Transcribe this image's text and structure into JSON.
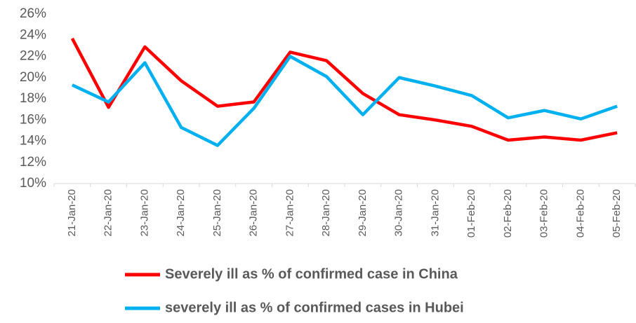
{
  "chart_data": {
    "type": "line",
    "categories": [
      "21-Jan-20",
      "22-Jan-20",
      "23-Jan-20",
      "24-Jan-20",
      "25-Jan-20",
      "26-Jan-20",
      "27-Jan-20",
      "28-Jan-20",
      "29-Jan-20",
      "30-Jan-20",
      "31-Jan-20",
      "01-Feb-20",
      "02-Feb-20",
      "03-Feb-20",
      "04-Feb-20",
      "05-Feb-20"
    ],
    "series": [
      {
        "name": "Severely ill as % of confirmed case in China",
        "color": "#ff0000",
        "values": [
          23.7,
          17.2,
          22.9,
          19.7,
          17.3,
          17.7,
          22.4,
          21.6,
          18.5,
          16.5,
          16.0,
          15.4,
          14.1,
          14.4,
          14.1,
          14.8
        ]
      },
      {
        "name": "severely ill as % of confirmed cases in Hubei",
        "color": "#00b0f0",
        "values": [
          19.3,
          17.7,
          21.4,
          15.3,
          13.6,
          17.1,
          22.0,
          20.1,
          16.5,
          20.0,
          19.2,
          18.3,
          16.2,
          16.9,
          16.1,
          17.3
        ]
      }
    ],
    "ylim": [
      10,
      26
    ],
    "yticks": [
      {
        "value": 10,
        "label": "10%"
      },
      {
        "value": 12,
        "label": "12%"
      },
      {
        "value": 14,
        "label": "14%"
      },
      {
        "value": 16,
        "label": "16%"
      },
      {
        "value": 18,
        "label": "18%"
      },
      {
        "value": 20,
        "label": "20%"
      },
      {
        "value": 22,
        "label": "22%"
      },
      {
        "value": 24,
        "label": "24%"
      },
      {
        "value": 26,
        "label": "26%"
      }
    ],
    "grid": false,
    "legend": "bottom"
  }
}
